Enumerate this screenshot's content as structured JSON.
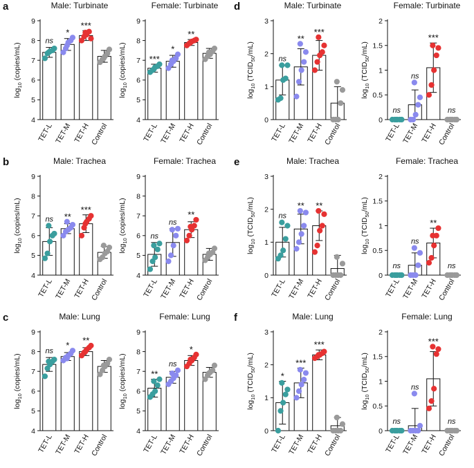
{
  "figure": {
    "colors": {
      "TET-L": "#3a9e9e",
      "TET-M": "#8a8aee",
      "TET-H": "#e63232",
      "Control": "#9a9a9a"
    },
    "categories": [
      "TET-L",
      "TET-M",
      "TET-H",
      "Control"
    ]
  },
  "chart_data": [
    {
      "panel_letter": "a",
      "title": "Male: Turbinate",
      "type": "bar",
      "ylabel": "log10 (copies/mL)",
      "ylim": [
        4,
        9
      ],
      "yticks": [
        4,
        5,
        6,
        7,
        8,
        9
      ],
      "categories": [
        "TET-L",
        "TET-M",
        "TET-H",
        "Control"
      ],
      "means": [
        7.4,
        7.8,
        8.25,
        7.2
      ],
      "sd": [
        0.25,
        0.3,
        0.25,
        0.3
      ],
      "points": [
        [
          7.1,
          7.35,
          7.45,
          7.5,
          7.6,
          7.4
        ],
        [
          7.4,
          7.6,
          7.9,
          8.0,
          8.15,
          7.75
        ],
        [
          8.0,
          8.2,
          8.3,
          8.45,
          8.1,
          8.4
        ],
        [
          6.9,
          7.05,
          7.2,
          7.35,
          7.55,
          7.1
        ]
      ],
      "annotations": [
        "ns",
        "*",
        "***",
        ""
      ]
    },
    {
      "panel_letter": "",
      "title": "Female: Turbinate",
      "type": "bar",
      "ylabel": "log10 (copies/mL)",
      "ylim": [
        4,
        9
      ],
      "yticks": [
        4,
        5,
        6,
        7,
        8,
        9
      ],
      "categories": [
        "TET-L",
        "TET-M",
        "TET-H",
        "Control"
      ],
      "means": [
        6.6,
        6.95,
        7.9,
        7.35
      ],
      "sd": [
        0.2,
        0.3,
        0.15,
        0.25
      ],
      "points": [
        [
          6.4,
          6.5,
          6.65,
          6.7,
          6.8,
          6.55
        ],
        [
          6.6,
          6.8,
          6.95,
          7.1,
          7.3,
          7.0
        ],
        [
          7.75,
          7.85,
          7.95,
          8.0,
          8.05,
          7.9
        ],
        [
          7.05,
          7.2,
          7.3,
          7.45,
          7.6,
          7.4
        ]
      ],
      "annotations": [
        "***",
        "*",
        "**",
        ""
      ]
    },
    {
      "panel_letter": "d",
      "title": "Male: Turbinate",
      "type": "bar",
      "ylabel": "log10 (TCID50/mL)",
      "ylim": [
        0,
        3
      ],
      "yticks": [
        0,
        1,
        2,
        3
      ],
      "categories": [
        "TET-L",
        "TET-M",
        "TET-H",
        "Control"
      ],
      "means": [
        1.2,
        1.6,
        1.95,
        0.5
      ],
      "sd": [
        0.45,
        0.55,
        0.45,
        0.5
      ],
      "points": [
        [
          0.6,
          0.65,
          1.2,
          1.25,
          1.65,
          1.65
        ],
        [
          0.7,
          1.15,
          1.5,
          1.75,
          2.05,
          2.3
        ],
        [
          1.5,
          1.75,
          1.95,
          2.05,
          2.25,
          2.5
        ],
        [
          0.0,
          0.0,
          0.0,
          0.5,
          0.9,
          1.15
        ]
      ],
      "annotations": [
        "ns",
        "**",
        "***",
        ""
      ]
    },
    {
      "panel_letter": "",
      "title": "Female: Turbinate",
      "type": "bar",
      "ylabel": "log10 (TCID50/mL)",
      "ylim": [
        0,
        2
      ],
      "yticks": [
        0,
        0.5,
        1,
        1.5,
        2
      ],
      "categories": [
        "TET-L",
        "TET-M",
        "TET-H",
        "Control"
      ],
      "means": [
        0.0,
        0.3,
        1.05,
        0.0
      ],
      "sd": [
        0.0,
        0.3,
        0.5,
        0.0
      ],
      "points": [
        [
          0,
          0,
          0,
          0,
          0,
          0
        ],
        [
          0,
          0,
          0.1,
          0.3,
          0.45,
          0.75
        ],
        [
          0.5,
          0.7,
          1.0,
          1.3,
          1.45,
          1.5
        ],
        [
          0,
          0,
          0,
          0,
          0,
          0
        ]
      ],
      "annotations": [
        "ns",
        "ns",
        "***",
        "ns"
      ]
    },
    {
      "panel_letter": "b",
      "title": "Male: Trachea",
      "type": "bar",
      "ylabel": "log10 (copies/mL)",
      "ylim": [
        4,
        9
      ],
      "yticks": [
        4,
        5,
        6,
        7,
        8,
        9
      ],
      "categories": [
        "TET-L",
        "TET-M",
        "TET-H",
        "Control"
      ],
      "means": [
        5.7,
        6.35,
        6.6,
        5.15
      ],
      "sd": [
        0.7,
        0.25,
        0.45,
        0.3
      ],
      "points": [
        [
          4.85,
          5.1,
          5.7,
          6.0,
          6.1,
          6.5
        ],
        [
          6.0,
          6.2,
          6.3,
          6.4,
          6.55,
          6.7
        ],
        [
          6.0,
          6.4,
          6.7,
          6.85,
          7.0,
          6.6
        ],
        [
          4.8,
          4.9,
          5.1,
          5.2,
          5.4,
          5.5
        ]
      ],
      "annotations": [
        "ns",
        "**",
        "***",
        ""
      ]
    },
    {
      "panel_letter": "",
      "title": "Female: Trachea",
      "type": "bar",
      "ylabel": "log10 (copies/mL)",
      "ylim": [
        4,
        9
      ],
      "yticks": [
        4,
        5,
        6,
        7,
        8,
        9
      ],
      "categories": [
        "TET-L",
        "TET-M",
        "TET-H",
        "Control"
      ],
      "means": [
        5.05,
        5.65,
        6.3,
        5.05
      ],
      "sd": [
        0.6,
        0.7,
        0.4,
        0.3
      ],
      "points": [
        [
          4.3,
          4.7,
          4.9,
          5.3,
          5.6,
          5.5
        ],
        [
          4.7,
          5.0,
          5.5,
          6.0,
          6.35,
          6.3
        ],
        [
          5.75,
          6.0,
          6.3,
          6.5,
          6.8,
          6.45
        ],
        [
          4.75,
          4.9,
          5.05,
          5.15,
          5.35,
          5.1
        ]
      ],
      "annotations": [
        "ns",
        "ns",
        "**",
        ""
      ]
    },
    {
      "panel_letter": "e",
      "title": "Male: Trachea",
      "type": "bar",
      "ylabel": "log10 (TCID50/mL)",
      "ylim": [
        0,
        3
      ],
      "yticks": [
        0,
        1,
        2,
        3
      ],
      "categories": [
        "TET-L",
        "TET-M",
        "TET-H",
        "Control"
      ],
      "means": [
        1.0,
        1.4,
        1.5,
        0.2
      ],
      "sd": [
        0.45,
        0.45,
        0.45,
        0.4
      ],
      "points": [
        [
          0.5,
          0.6,
          0.75,
          1.1,
          1.5,
          1.6
        ],
        [
          0.8,
          1.0,
          1.25,
          1.5,
          1.9,
          1.95
        ],
        [
          0.7,
          0.9,
          1.35,
          1.5,
          1.85,
          1.95
        ],
        [
          0,
          0,
          0,
          0,
          0.35,
          0.55
        ]
      ],
      "annotations": [
        "ns",
        "**",
        "**",
        ""
      ]
    },
    {
      "panel_letter": "",
      "title": "Female: Trachea",
      "type": "bar",
      "ylabel": "log10 (TCID50/mL)",
      "ylim": [
        0,
        2
      ],
      "yticks": [
        0,
        0.5,
        1,
        1.5,
        2
      ],
      "categories": [
        "TET-L",
        "TET-M",
        "TET-H",
        "Control"
      ],
      "means": [
        0.0,
        0.2,
        0.65,
        0.0
      ],
      "sd": [
        0.0,
        0.25,
        0.3,
        0.0
      ],
      "points": [
        [
          0,
          0,
          0,
          0,
          0,
          0
        ],
        [
          0,
          0,
          0,
          0.2,
          0.45,
          0.55
        ],
        [
          0.25,
          0.35,
          0.6,
          0.8,
          0.95,
          0.8
        ],
        [
          0,
          0,
          0,
          0,
          0,
          0
        ]
      ],
      "annotations": [
        "ns",
        "ns",
        "**",
        "ns"
      ]
    },
    {
      "panel_letter": "c",
      "title": "Male: Lung",
      "type": "bar",
      "ylabel": "log10 (copies/mL)",
      "ylim": [
        4,
        9
      ],
      "yticks": [
        4,
        5,
        6,
        7,
        8,
        9
      ],
      "categories": [
        "TET-L",
        "TET-M",
        "TET-H",
        "Control"
      ],
      "means": [
        7.35,
        7.75,
        8.0,
        7.25
      ],
      "sd": [
        0.35,
        0.2,
        0.2,
        0.3
      ],
      "points": [
        [
          6.75,
          7.15,
          7.35,
          7.5,
          7.6,
          7.5
        ],
        [
          7.55,
          7.7,
          7.8,
          7.9,
          8.05,
          7.65
        ],
        [
          7.8,
          7.95,
          8.1,
          8.2,
          8.3,
          8.0
        ],
        [
          6.85,
          7.05,
          7.25,
          7.4,
          7.6,
          7.3
        ]
      ],
      "annotations": [
        "ns",
        "*",
        "**",
        ""
      ]
    },
    {
      "panel_letter": "",
      "title": "Female: Lung",
      "type": "bar",
      "ylabel": "log10 (copies/mL)",
      "ylim": [
        4,
        9
      ],
      "yticks": [
        4,
        5,
        6,
        7,
        8,
        9
      ],
      "categories": [
        "TET-L",
        "TET-M",
        "TET-H",
        "Control"
      ],
      "means": [
        6.15,
        6.7,
        7.55,
        6.95
      ],
      "sd": [
        0.45,
        0.3,
        0.25,
        0.25
      ],
      "points": [
        [
          5.7,
          5.85,
          6.0,
          6.3,
          6.6,
          6.5
        ],
        [
          6.35,
          6.5,
          6.65,
          6.8,
          7.05,
          6.9
        ],
        [
          7.25,
          7.4,
          7.55,
          7.7,
          7.85,
          7.6
        ],
        [
          6.6,
          6.8,
          6.95,
          7.05,
          7.3,
          6.9
        ]
      ],
      "annotations": [
        "**",
        "ns",
        "*",
        ""
      ]
    },
    {
      "panel_letter": "f",
      "title": "Male: Lung",
      "type": "bar",
      "ylabel": "log10 (TCID50/mL)",
      "ylim": [
        0,
        3
      ],
      "yticks": [
        0,
        1,
        2,
        3
      ],
      "categories": [
        "TET-L",
        "TET-M",
        "TET-H",
        "Control"
      ],
      "means": [
        0.85,
        1.45,
        2.3,
        0.15
      ],
      "sd": [
        0.65,
        0.45,
        0.15,
        0.25
      ],
      "points": [
        [
          0.0,
          0.6,
          0.85,
          1.1,
          1.25,
          1.45
        ],
        [
          1.0,
          1.2,
          1.4,
          1.55,
          1.75,
          1.85
        ],
        [
          2.2,
          2.25,
          2.3,
          2.35,
          2.4,
          2.3
        ],
        [
          0,
          0,
          0,
          0,
          0.2,
          0.4
        ]
      ],
      "annotations": [
        "*",
        "***",
        "***",
        ""
      ]
    },
    {
      "panel_letter": "",
      "title": "Female: Lung",
      "type": "bar",
      "ylabel": "log10 (TCID50/mL)",
      "ylim": [
        0,
        2
      ],
      "yticks": [
        0,
        0.5,
        1,
        1.5,
        2
      ],
      "categories": [
        "TET-L",
        "TET-M",
        "TET-H",
        "Control"
      ],
      "means": [
        0.0,
        0.1,
        1.05,
        0.0
      ],
      "sd": [
        0.0,
        0.35,
        0.55,
        0.0
      ],
      "points": [
        [
          0,
          0,
          0,
          0,
          0,
          0
        ],
        [
          0,
          0,
          0,
          0,
          0.1,
          0.75
        ],
        [
          0.45,
          0.6,
          0.85,
          1.55,
          1.65,
          1.7
        ],
        [
          0,
          0,
          0,
          0,
          0,
          0
        ]
      ],
      "annotations": [
        "ns",
        "ns",
        "***",
        "ns"
      ]
    }
  ]
}
